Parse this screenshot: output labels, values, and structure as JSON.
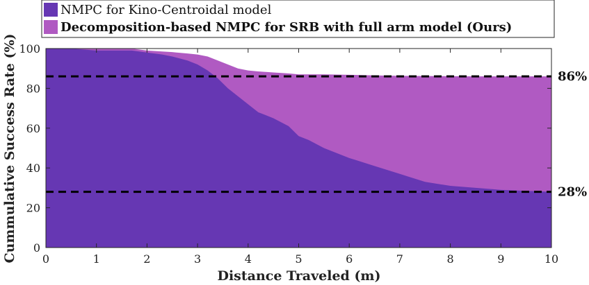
{
  "chart_data": {
    "type": "area",
    "xlabel": "Distance Traveled (m)",
    "ylabel": "Cummulative Success Rate (%)",
    "xlim": [
      0,
      10
    ],
    "ylim": [
      0,
      100
    ],
    "xticks": [
      0,
      1,
      2,
      3,
      4,
      5,
      6,
      7,
      8,
      9,
      10
    ],
    "yticks": [
      0,
      20,
      40,
      60,
      80,
      100
    ],
    "grid": false,
    "legend_position": "top-left",
    "x": [
      0,
      0.5,
      1,
      1.5,
      1.7,
      2,
      2.3,
      2.5,
      2.8,
      3,
      3.2,
      3.4,
      3.6,
      3.8,
      4,
      4.2,
      4.5,
      4.8,
      5,
      5.2,
      5.5,
      6,
      6.5,
      7,
      7.5,
      8,
      8.5,
      9,
      9.5,
      10
    ],
    "series": [
      {
        "name": "NMPC for Kino-Centroidal model",
        "color": "#6637b3",
        "values": [
          100,
          100,
          99,
          99,
          99,
          98,
          97,
          96,
          94,
          92,
          89,
          85,
          80,
          76,
          72,
          68,
          65,
          61,
          56,
          54,
          50,
          45,
          41,
          37,
          33,
          31,
          30,
          29,
          28.5,
          28
        ]
      },
      {
        "name": "Decomposition-based NMPC for SRB with full arm model (Ours)",
        "color": "#b05ac2",
        "values": [
          100,
          100,
          100,
          100,
          100,
          99,
          98.5,
          98.2,
          97.5,
          97,
          96,
          94,
          92,
          90,
          89,
          88.5,
          88,
          87.5,
          87,
          87,
          87,
          86.8,
          86.5,
          86.3,
          86.2,
          86.1,
          86,
          86,
          86,
          86
        ]
      }
    ],
    "reference_lines": [
      {
        "y": 86,
        "label": "86%"
      },
      {
        "y": 28,
        "label": "28%"
      }
    ]
  }
}
